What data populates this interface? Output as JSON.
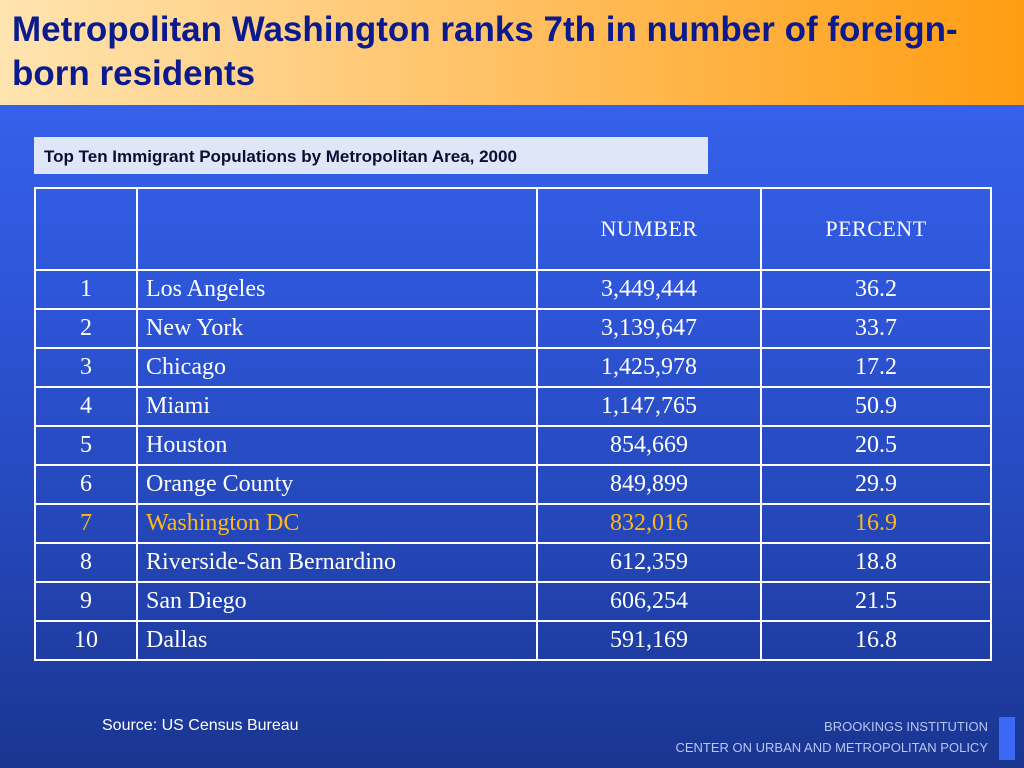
{
  "slide": {
    "title": "Metropolitan Washington ranks 7th in number of foreign-born residents",
    "subtitle": "Top Ten Immigrant Populations by Metropolitan Area, 2000",
    "source": "Source: US Census Bureau",
    "brand_line1": "BROOKINGS INSTITUTION",
    "brand_line2": "CENTER ON URBAN AND METROPOLITAN POLICY",
    "highlight_color": "#ffb81c"
  },
  "table": {
    "columns": [
      "",
      "",
      "NUMBER",
      "PERCENT"
    ],
    "rows": [
      {
        "rank": "1",
        "area": "Los Angeles",
        "number": "3,449,444",
        "percent": "36.2"
      },
      {
        "rank": "2",
        "area": "New York",
        "number": "3,139,647",
        "percent": "33.7"
      },
      {
        "rank": "3",
        "area": "Chicago",
        "number": "1,425,978",
        "percent": "17.2"
      },
      {
        "rank": "4",
        "area": "Miami",
        "number": "1,147,765",
        "percent": "50.9"
      },
      {
        "rank": "5",
        "area": "Houston",
        "number": "854,669",
        "percent": "20.5"
      },
      {
        "rank": "6",
        "area": "Orange County",
        "number": "849,899",
        "percent": "29.9"
      },
      {
        "rank": "7",
        "area": "Washington DC",
        "number": "832,016",
        "percent": "16.9"
      },
      {
        "rank": "8",
        "area": "Riverside-San Bernardino",
        "number": "612,359",
        "percent": "18.8"
      },
      {
        "rank": "9",
        "area": "San Diego",
        "number": "606,254",
        "percent": "21.5"
      },
      {
        "rank": "10",
        "area": "Dallas",
        "number": "591,169",
        "percent": "16.8"
      }
    ]
  }
}
